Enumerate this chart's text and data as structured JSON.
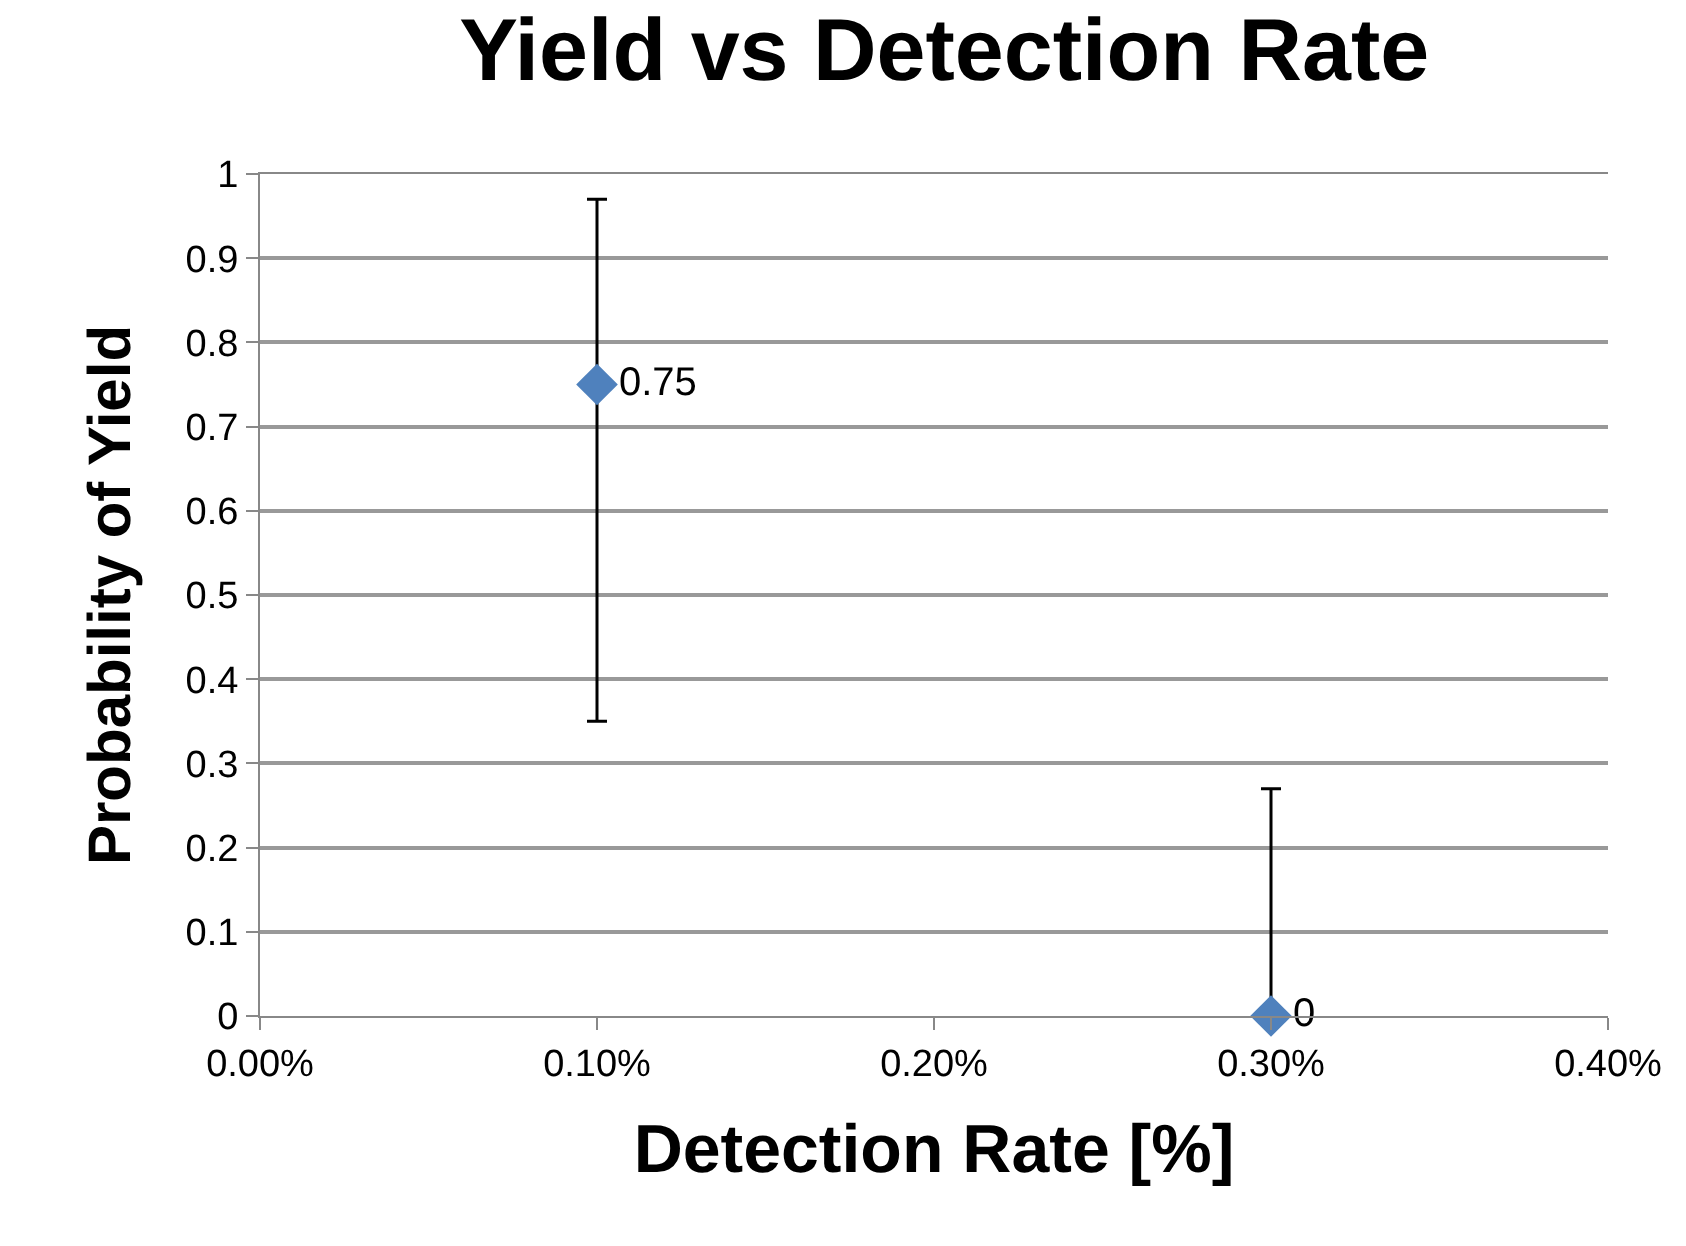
{
  "chart_data": {
    "type": "scatter",
    "title": "Yield vs Detection Rate",
    "xlabel": "Detection Rate [%]",
    "ylabel": "Probability of Yield",
    "x": [
      0.1,
      0.3
    ],
    "values": [
      0.75,
      0
    ],
    "color": "#4f81bd",
    "errors": [
      [
        0.35,
        0.97
      ],
      [
        0,
        0.27
      ]
    ],
    "data_labels": true,
    "marker": "diamond",
    "grid": "y",
    "xlim": [
      0,
      0.4
    ],
    "xticks": [
      {
        "value": 0,
        "label": "0.00%"
      },
      {
        "value": 0.1,
        "label": "0.10%"
      },
      {
        "value": 0.2,
        "label": "0.20%"
      },
      {
        "value": 0.3,
        "label": "0.30%"
      },
      {
        "value": 0.4,
        "label": "0.40%"
      }
    ],
    "ylim": [
      0,
      1
    ],
    "yticks": [
      0,
      0.1,
      0.2,
      0.3,
      0.4,
      0.5,
      0.6,
      0.7,
      0.8,
      0.9,
      1
    ]
  }
}
